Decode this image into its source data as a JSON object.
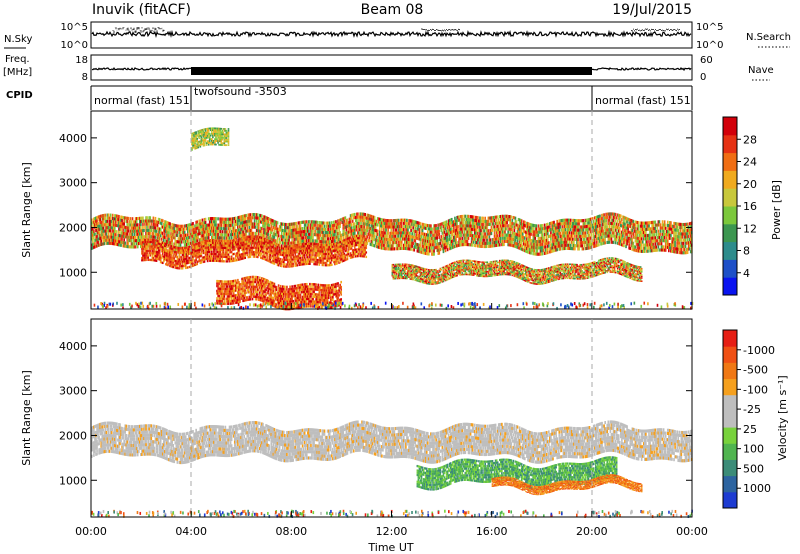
{
  "header": {
    "station": "Inuvik (fitACF)",
    "beam": "Beam 08",
    "date": "19/Jul/2015"
  },
  "strips": {
    "nsky_label": "N.Sky",
    "nsky_ticks": [
      "10^5",
      "10^0"
    ],
    "nsearch_label": "N.Search",
    "nsearch_ticks": [
      "10^5",
      "10^0"
    ],
    "freq_label_1": "Freq.",
    "freq_label_2": "[MHz]",
    "freq_ticks": [
      "18",
      "8"
    ],
    "nave_label": "Nave",
    "nave_ticks": [
      "60",
      "0"
    ],
    "cpid_label": "CPID",
    "modes": [
      {
        "label": "normal (fast) 151",
        "start_h": 0,
        "end_h": 4
      },
      {
        "label": "twofsound -3503",
        "start_h": 4,
        "end_h": 20
      },
      {
        "label": "normal (fast) 151",
        "start_h": 20,
        "end_h": 24
      }
    ]
  },
  "chart_data": [
    {
      "type": "heatmap",
      "name": "power",
      "ylabel": "Slant Range [km]",
      "ylim": [
        180,
        4600
      ],
      "yticks": [
        1000,
        2000,
        3000,
        4000
      ],
      "xlim": [
        0,
        24
      ],
      "colorbar": {
        "label": "Power [dB]",
        "ticks": [
          "4",
          "8",
          "12",
          "16",
          "20",
          "24",
          "28"
        ],
        "colors": [
          "#0a14f0",
          "#1e50c8",
          "#2d8c8c",
          "#3c9650",
          "#7cc83c",
          "#c8c83c",
          "#f0aa1e",
          "#f06e14",
          "#e63214",
          "#d2000a"
        ]
      },
      "bands": [
        {
          "x": [
            0,
            24
          ],
          "y": [
            1500,
            2200
          ],
          "level": "medium-high"
        },
        {
          "x": [
            2,
            11
          ],
          "y": [
            1200,
            1700
          ],
          "level": "high"
        },
        {
          "x": [
            5,
            10
          ],
          "y": [
            250,
            800
          ],
          "level": "high"
        },
        {
          "x": [
            12,
            22
          ],
          "y": [
            850,
            1200
          ],
          "level": "medium-high"
        },
        {
          "x": [
            4,
            5.5
          ],
          "y": [
            3800,
            4200
          ],
          "level": "medium"
        }
      ]
    },
    {
      "type": "heatmap",
      "name": "velocity",
      "ylabel": "Slant Range [km]",
      "ylim": [
        180,
        4600
      ],
      "yticks": [
        1000,
        2000,
        3000,
        4000
      ],
      "xlim": [
        0,
        24
      ],
      "xlabel": "Time UT",
      "xticks": [
        "00:00",
        "04:00",
        "08:00",
        "12:00",
        "16:00",
        "20:00",
        "00:00"
      ],
      "colorbar": {
        "label": "Velocity [m s⁻¹]",
        "ticks": [
          "1000",
          "500",
          "100",
          "25",
          "-25",
          "-100",
          "-500",
          "-1000"
        ],
        "colors": [
          "#1e3cd2",
          "#2d64a0",
          "#3c8c78",
          "#50b450",
          "#78d23c",
          "#bebebe",
          "#bebebe",
          "#f5a01e",
          "#f07814",
          "#f05014",
          "#e61e14"
        ]
      },
      "bands": [
        {
          "x": [
            0,
            24
          ],
          "y": [
            1500,
            2200
          ],
          "level": "ground-scatter"
        },
        {
          "x": [
            13,
            21
          ],
          "y": [
            900,
            1400
          ],
          "level": "positive"
        },
        {
          "x": [
            16,
            22
          ],
          "y": [
            800,
            1000
          ],
          "level": "negative"
        }
      ]
    }
  ]
}
